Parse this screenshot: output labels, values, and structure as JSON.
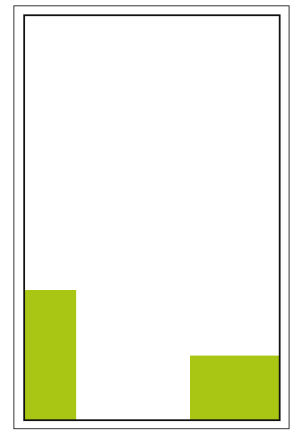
{
  "colors": {
    "page_background": "#ffffff",
    "frame_border": "#1a1a1a",
    "play_area_background": "#ffffff",
    "block_fill": "#a8c613"
  },
  "blocks": [
    {
      "name": "left-block",
      "color": "#a8c613"
    },
    {
      "name": "right-block",
      "color": "#a8c613"
    }
  ]
}
